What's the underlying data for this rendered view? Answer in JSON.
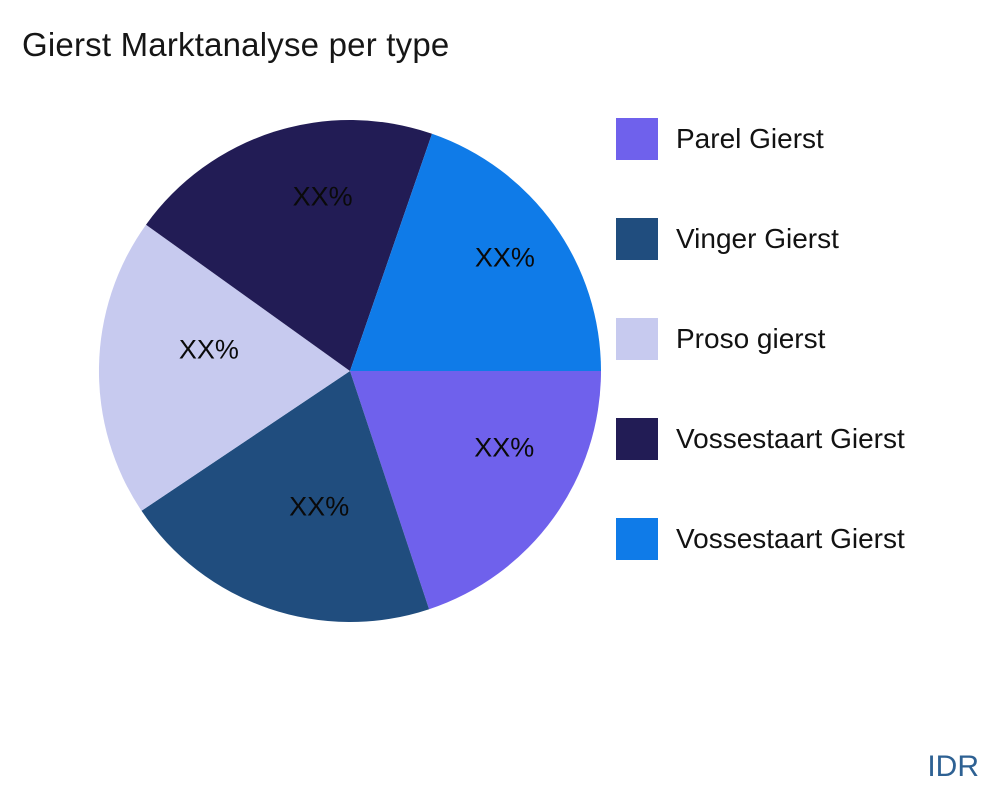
{
  "header": {
    "title": "Gierst Marktanalyse per type"
  },
  "watermark": {
    "text": "IDR",
    "color": "#2E6193"
  },
  "legend": {
    "position": "right",
    "items": [
      {
        "label": "Parel Gierst",
        "color": "#6F61EC"
      },
      {
        "label": "Vinger Gierst",
        "color": "#204D7E"
      },
      {
        "label": "Proso gierst",
        "color": "#C7CAEF"
      },
      {
        "label": "Vossestaart Gierst",
        "color": "#221C55"
      },
      {
        "label": "Vossestaart Gierst",
        "color": "#0F7BE8"
      }
    ]
  },
  "chart_data": {
    "type": "pie",
    "title": "Gierst Marktanalyse per type",
    "labels": [
      "Parel Gierst",
      "Vinger Gierst",
      "Proso gierst",
      "Vossestaart Gierst",
      "Vossestaart Gierst"
    ],
    "values": [
      19.9,
      20.7,
      19.3,
      20.4,
      19.7
    ],
    "colors": [
      "#6F61EC",
      "#204D7E",
      "#C7CAEF",
      "#221C55",
      "#0F7BE8"
    ],
    "slice_labels": [
      "XX%",
      "XX%",
      "XX%",
      "XX%",
      "XX%"
    ],
    "start_angle_deg": 0,
    "direction": "clockwise",
    "legend_position": "right",
    "grid": false
  }
}
